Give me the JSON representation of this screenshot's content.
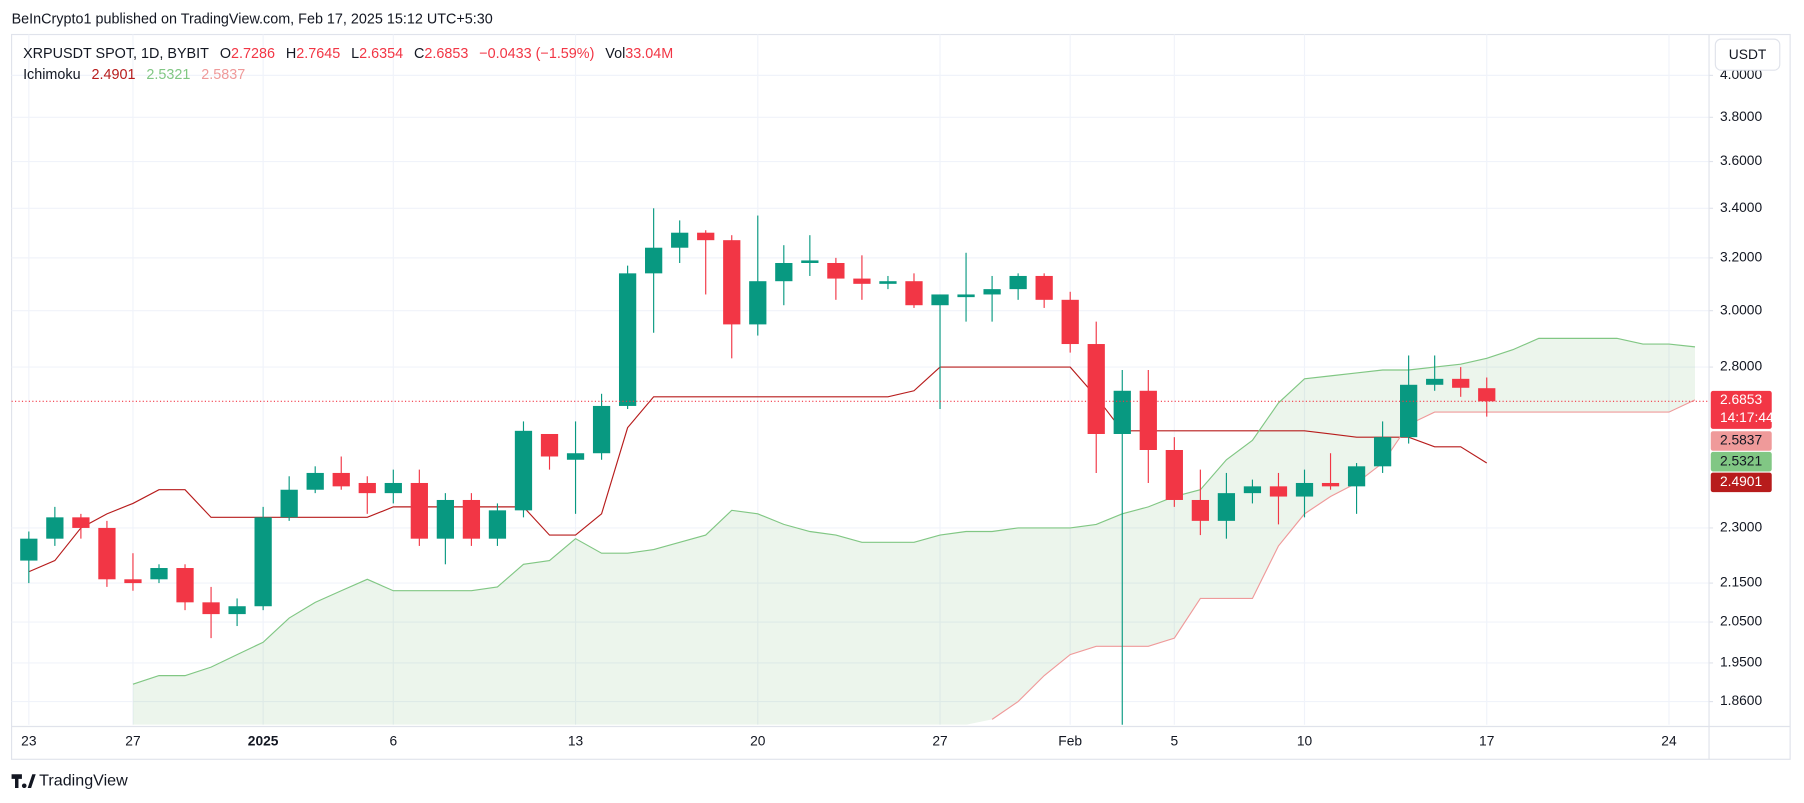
{
  "header": {
    "published": "BeInCrypto1 published on TradingView.com, Feb 17, 2025 15:12 UTC+5:30",
    "symbol": "XRPUSDT SPOT, 1D, BYBIT",
    "ohlc_labels": [
      "O",
      "H",
      "L",
      "C"
    ],
    "change": "−0.0433 (−1.59%)",
    "volume_label": "Vol",
    "volume": "33.04M",
    "indicator": "Ichimoku",
    "indicator_values": [
      2.4901,
      2.5321,
      2.5837
    ],
    "indicator_colors": [
      "#b71c1c",
      "#81c784",
      "#ef9a9a"
    ],
    "currency": "USDT",
    "countdown": "14:17:44",
    "brand": "TradingView"
  },
  "chart_data": {
    "type": "candlestick",
    "log_scale": true,
    "grid": true,
    "up_color": "#089981",
    "down_color": "#f23645",
    "cloud_color": "#43a047",
    "ylim": [
      1.808,
      4.205
    ],
    "yticks": [
      {
        "value": 1.86,
        "label": "1.8600"
      },
      {
        "value": 1.95,
        "label": "1.9500"
      },
      {
        "value": 2.05,
        "label": "2.0500"
      },
      {
        "value": 2.15,
        "label": "2.1500"
      },
      {
        "value": 2.3,
        "label": "2.3000"
      },
      {
        "value": 2.8,
        "label": "2.8000"
      },
      {
        "value": 3.0,
        "label": "3.0000"
      },
      {
        "value": 3.2,
        "label": "3.2000"
      },
      {
        "value": 3.4,
        "label": "3.4000"
      },
      {
        "value": 3.6,
        "label": "3.6000"
      },
      {
        "value": 3.8,
        "label": "3.8000"
      },
      {
        "value": 4.0,
        "label": "4.0000"
      }
    ],
    "categories": [
      "23",
      null,
      null,
      null,
      "27",
      null,
      null,
      null,
      null,
      "2025",
      null,
      null,
      null,
      null,
      "6",
      null,
      null,
      null,
      null,
      null,
      null,
      "13",
      null,
      null,
      null,
      null,
      null,
      null,
      "20",
      null,
      null,
      null,
      null,
      null,
      null,
      "27",
      null,
      null,
      null,
      null,
      "Feb",
      null,
      null,
      null,
      "5",
      null,
      null,
      null,
      null,
      "10",
      null,
      null,
      null,
      null,
      null,
      null,
      "17",
      null,
      null,
      null,
      null,
      null,
      null,
      "24",
      null
    ],
    "open": [
      2.21,
      2.27,
      2.33,
      2.3,
      2.16,
      2.16,
      2.19,
      2.1,
      2.07,
      2.09,
      2.33,
      2.41,
      2.46,
      2.43,
      2.4,
      2.43,
      2.27,
      2.38,
      2.27,
      2.35,
      2.58,
      2.5,
      2.52,
      2.67,
      3.14,
      3.24,
      3.3,
      3.27,
      2.95,
      3.11,
      3.18,
      3.18,
      3.12,
      3.1,
      3.11,
      3.02,
      3.05,
      3.06,
      3.08,
      3.13,
      3.04,
      2.88,
      2.58,
      2.72,
      2.53,
      2.38,
      2.32,
      2.4,
      2.42,
      2.39,
      2.43,
      2.42,
      2.48,
      2.57,
      2.74,
      2.76,
      2.7286,
      null,
      null,
      null,
      null,
      null,
      null,
      null,
      null
    ],
    "high": [
      2.29,
      2.36,
      2.34,
      2.32,
      2.23,
      2.2,
      2.2,
      2.14,
      2.11,
      2.36,
      2.45,
      2.48,
      2.51,
      2.45,
      2.47,
      2.47,
      2.4,
      2.4,
      2.37,
      2.62,
      2.58,
      2.62,
      2.71,
      3.17,
      3.4,
      3.35,
      3.31,
      3.29,
      3.37,
      3.25,
      3.29,
      3.2,
      3.21,
      3.13,
      3.14,
      3.06,
      3.22,
      3.13,
      3.14,
      3.14,
      3.07,
      2.96,
      2.79,
      2.79,
      2.57,
      2.47,
      2.46,
      2.44,
      2.46,
      2.47,
      2.52,
      2.49,
      2.62,
      2.84,
      2.84,
      2.8,
      2.7645,
      null,
      null,
      null,
      null,
      null,
      null,
      null,
      null
    ],
    "low": [
      2.15,
      2.25,
      2.27,
      2.14,
      2.13,
      2.15,
      2.08,
      2.01,
      2.04,
      2.08,
      2.32,
      2.4,
      2.41,
      2.34,
      2.37,
      2.25,
      2.2,
      2.25,
      2.25,
      2.33,
      2.47,
      2.34,
      2.5,
      2.66,
      2.92,
      3.18,
      3.06,
      2.83,
      2.91,
      3.02,
      3.13,
      3.04,
      3.04,
      3.08,
      3.01,
      2.66,
      2.96,
      2.96,
      3.04,
      3.01,
      2.85,
      2.46,
      1.77,
      2.43,
      2.36,
      2.28,
      2.27,
      2.37,
      2.31,
      2.33,
      2.41,
      2.34,
      2.46,
      2.55,
      2.72,
      2.7,
      2.6354,
      null,
      null,
      null,
      null,
      null,
      null,
      null,
      null
    ],
    "close": [
      2.27,
      2.33,
      2.3,
      2.16,
      2.15,
      2.19,
      2.1,
      2.07,
      2.09,
      2.33,
      2.41,
      2.46,
      2.42,
      2.4,
      2.43,
      2.27,
      2.38,
      2.27,
      2.35,
      2.59,
      2.51,
      2.52,
      2.67,
      3.14,
      3.24,
      3.3,
      3.27,
      2.95,
      3.11,
      3.18,
      3.19,
      3.12,
      3.1,
      3.11,
      3.02,
      3.06,
      3.06,
      3.08,
      3.13,
      3.04,
      2.88,
      2.58,
      2.72,
      2.53,
      2.38,
      2.32,
      2.4,
      2.42,
      2.39,
      2.43,
      2.42,
      2.48,
      2.57,
      2.74,
      2.76,
      2.73,
      2.6853,
      null,
      null,
      null,
      null,
      null,
      null,
      null,
      null
    ],
    "lines": [
      {
        "color": "#b71c1c",
        "values": [
          2.18,
          2.21,
          2.3,
          2.34,
          2.37,
          2.41,
          2.41,
          2.33,
          2.33,
          2.33,
          2.33,
          2.33,
          2.33,
          2.33,
          2.36,
          2.36,
          2.36,
          2.36,
          2.36,
          2.36,
          2.28,
          2.28,
          2.34,
          2.6,
          2.7,
          2.7,
          2.7,
          2.7,
          2.7,
          2.7,
          2.7,
          2.7,
          2.7,
          2.7,
          2.72,
          2.8,
          2.8,
          2.8,
          2.8,
          2.8,
          2.8,
          2.7,
          2.59,
          2.59,
          2.59,
          2.59,
          2.59,
          2.59,
          2.59,
          2.59,
          2.58,
          2.57,
          2.57,
          2.57,
          2.54,
          2.54,
          2.4901,
          null,
          null,
          null,
          null,
          null,
          null,
          null,
          null
        ]
      },
      {
        "color": "#81c784",
        "values": [
          null,
          null,
          null,
          null,
          1.9,
          1.92,
          1.92,
          1.94,
          1.97,
          2.0,
          2.06,
          2.1,
          2.13,
          2.16,
          2.13,
          2.13,
          2.13,
          2.13,
          2.14,
          2.2,
          2.21,
          2.27,
          2.23,
          2.23,
          2.24,
          2.26,
          2.28,
          2.35,
          2.34,
          2.31,
          2.29,
          2.28,
          2.26,
          2.26,
          2.26,
          2.28,
          2.29,
          2.29,
          2.3,
          2.3,
          2.3,
          2.31,
          2.34,
          2.36,
          2.39,
          2.41,
          2.5,
          2.56,
          2.68,
          2.76,
          2.77,
          2.78,
          2.79,
          2.79,
          2.8,
          2.81,
          2.83,
          2.86,
          2.9,
          2.9,
          2.9,
          2.9,
          2.88,
          2.88,
          2.87
        ]
      },
      {
        "color": "#ef9a9a",
        "values": [
          null,
          null,
          null,
          null,
          null,
          null,
          null,
          null,
          null,
          null,
          null,
          null,
          null,
          null,
          null,
          null,
          null,
          null,
          null,
          null,
          null,
          null,
          null,
          null,
          null,
          null,
          null,
          null,
          null,
          null,
          null,
          null,
          null,
          null,
          null,
          null,
          null,
          1.82,
          1.86,
          1.92,
          1.97,
          1.99,
          1.99,
          1.99,
          2.01,
          2.11,
          2.11,
          2.11,
          2.25,
          2.34,
          2.39,
          2.43,
          2.49,
          2.61,
          2.65,
          2.65,
          2.65,
          2.65,
          2.65,
          2.65,
          2.65,
          2.65,
          2.65,
          2.65,
          2.69
        ]
      }
    ]
  }
}
